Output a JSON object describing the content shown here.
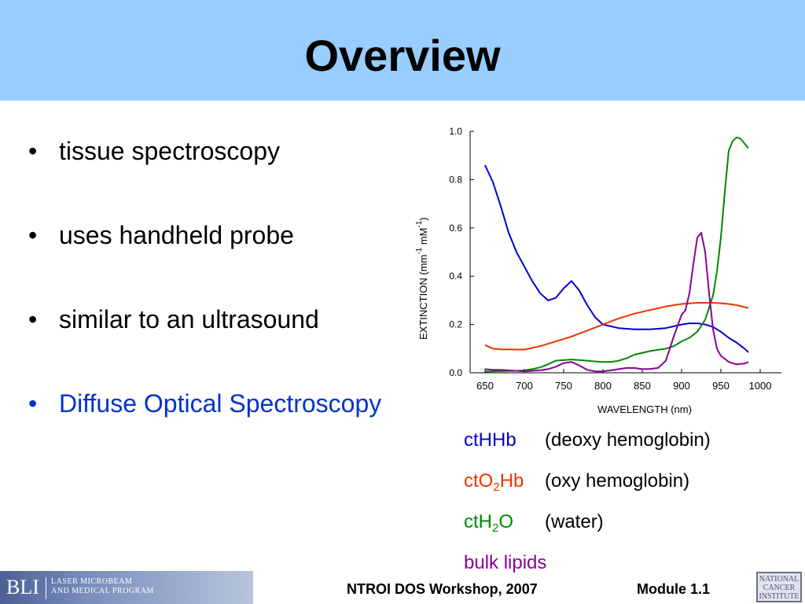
{
  "slide": {
    "title": "Overview",
    "bullets": [
      {
        "text": "tissue spectroscopy"
      },
      {
        "text": "uses handheld probe"
      },
      {
        "text": "similar to an ultrasound"
      },
      {
        "text": "Diffuse Optical Spectroscopy"
      }
    ],
    "bullet_glyph": "•",
    "highlight_color": "#0033cc"
  },
  "legend": [
    {
      "pre": "ctHHb",
      "sub": "",
      "post": "",
      "desc": "(deoxy hemoglobin)",
      "color": "#0000cc"
    },
    {
      "pre": "ctO",
      "sub": "2",
      "post": "Hb",
      "desc": "(oxy hemoglobin)",
      "color": "#ee3300"
    },
    {
      "pre": "ctH",
      "sub": "2",
      "post": "O",
      "desc": "(water)",
      "color": "#008800"
    },
    {
      "pre": "bulk lipids",
      "sub": "",
      "post": "",
      "desc": "",
      "color": "#880099"
    }
  ],
  "chart_data": {
    "type": "line",
    "xlabel": "WAVELENGTH (nm)",
    "ylabel": {
      "main": "EXTINCTION (mm",
      "sup1": "-1",
      "mid": " mM",
      "sup2": "-1",
      "end": ")"
    },
    "xlim": [
      650,
      1000
    ],
    "ylim": [
      0,
      1.0
    ],
    "xticks": [
      650,
      700,
      750,
      800,
      850,
      900,
      950,
      1000
    ],
    "yticks": [
      "0.0",
      "0.2",
      "0.4",
      "0.6",
      "0.8",
      "1.0"
    ],
    "grid": false,
    "series": [
      {
        "name": "ctHHb",
        "color": "#0000cc",
        "x": [
          650,
          660,
          670,
          680,
          690,
          700,
          710,
          720,
          730,
          740,
          750,
          760,
          770,
          780,
          790,
          800,
          820,
          840,
          860,
          880,
          900,
          910,
          920,
          930,
          940,
          950,
          960,
          970,
          980,
          985
        ],
        "y": [
          0.86,
          0.79,
          0.69,
          0.58,
          0.5,
          0.44,
          0.38,
          0.33,
          0.3,
          0.31,
          0.35,
          0.38,
          0.34,
          0.28,
          0.23,
          0.2,
          0.185,
          0.18,
          0.18,
          0.185,
          0.2,
          0.205,
          0.205,
          0.2,
          0.19,
          0.17,
          0.145,
          0.125,
          0.1,
          0.085
        ]
      },
      {
        "name": "ctO2Hb",
        "color": "#ee3300",
        "x": [
          650,
          660,
          670,
          680,
          690,
          700,
          720,
          740,
          760,
          780,
          800,
          820,
          840,
          860,
          880,
          900,
          920,
          940,
          950,
          960,
          970,
          980,
          985
        ],
        "y": [
          0.115,
          0.1,
          0.097,
          0.097,
          0.096,
          0.096,
          0.11,
          0.13,
          0.15,
          0.175,
          0.2,
          0.225,
          0.245,
          0.26,
          0.275,
          0.285,
          0.29,
          0.29,
          0.288,
          0.285,
          0.28,
          0.272,
          0.268
        ]
      },
      {
        "name": "ctH2O",
        "color": "#008800",
        "x": [
          650,
          670,
          690,
          700,
          710,
          720,
          730,
          740,
          760,
          780,
          790,
          800,
          810,
          820,
          830,
          840,
          860,
          880,
          890,
          900,
          910,
          920,
          930,
          940,
          945,
          950,
          955,
          960,
          965,
          970,
          975,
          980,
          985
        ],
        "y": [
          0.005,
          0.007,
          0.008,
          0.01,
          0.015,
          0.022,
          0.035,
          0.05,
          0.055,
          0.05,
          0.047,
          0.045,
          0.045,
          0.05,
          0.06,
          0.075,
          0.09,
          0.1,
          0.11,
          0.13,
          0.145,
          0.17,
          0.22,
          0.32,
          0.42,
          0.56,
          0.75,
          0.92,
          0.96,
          0.975,
          0.97,
          0.95,
          0.93
        ]
      },
      {
        "name": "bulk lipids",
        "color": "#880099",
        "x": [
          650,
          660,
          670,
          680,
          690,
          700,
          710,
          720,
          730,
          740,
          750,
          760,
          770,
          780,
          790,
          800,
          810,
          820,
          830,
          840,
          850,
          860,
          870,
          880,
          890,
          900,
          905,
          910,
          915,
          920,
          925,
          930,
          935,
          940,
          945,
          950,
          960,
          970,
          980,
          985
        ],
        "y": [
          0.015,
          0.012,
          0.012,
          0.01,
          0.008,
          0.006,
          0.008,
          0.01,
          0.015,
          0.025,
          0.04,
          0.045,
          0.03,
          0.012,
          0.006,
          0.006,
          0.01,
          0.015,
          0.02,
          0.02,
          0.015,
          0.016,
          0.02,
          0.05,
          0.15,
          0.24,
          0.26,
          0.33,
          0.45,
          0.56,
          0.58,
          0.5,
          0.33,
          0.18,
          0.1,
          0.07,
          0.045,
          0.035,
          0.038,
          0.045
        ]
      }
    ]
  },
  "footer": {
    "logo_short": "BLI",
    "logo_line1": "LASER MICROBEAM",
    "logo_line2": "AND MEDICAL PROGRAM",
    "workshop": "NTROI DOS Workshop, 2007",
    "module": "Module 1.1",
    "nci_line1": "NATIONAL",
    "nci_line2": "CANCER",
    "nci_line3": "INSTITUTE"
  }
}
